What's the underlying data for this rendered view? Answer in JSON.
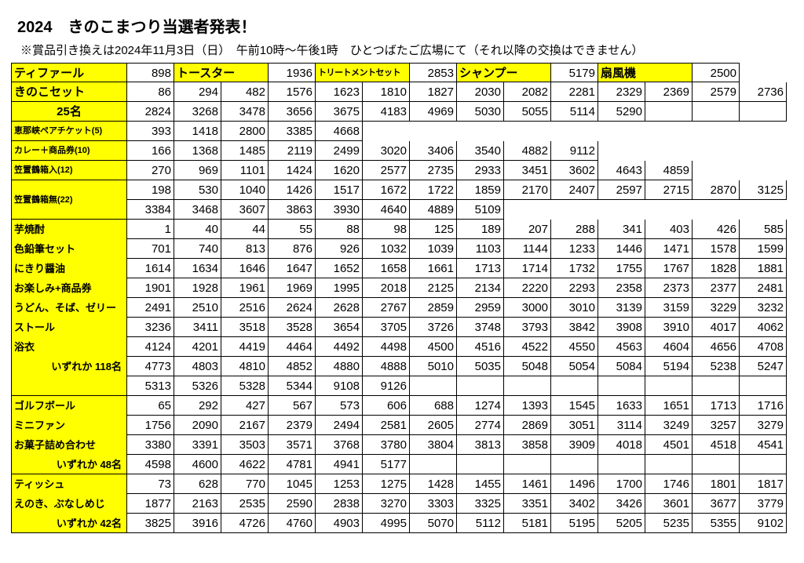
{
  "title": "2024　きのこまつり当選者発表！",
  "subtitle": "※賞品引き換えは2024年11月3日（日）　午前10時～午後1時　ひとつばたご広場にて（それ以降の交換はできません）",
  "row1": {
    "h1": "ティファール",
    "v1": "898",
    "h2": "トースター",
    "v2": "1936",
    "h3": "トリートメントセット",
    "v3": "2853",
    "h4": "シャンプー",
    "v4": "5179",
    "h5": "扇風機",
    "v5": "2500"
  },
  "kinoko": {
    "label": "きのこセット",
    "r1": [
      "86",
      "294",
      "482",
      "1576",
      "1623",
      "1810",
      "1827",
      "2030",
      "2082",
      "2281",
      "2329",
      "2369",
      "2579",
      "2736"
    ],
    "label2": "25名",
    "r2": [
      "2824",
      "3268",
      "3478",
      "3656",
      "3675",
      "4183",
      "4969",
      "5030",
      "5055",
      "5114",
      "5290",
      "",
      "",
      ""
    ]
  },
  "ena": {
    "label": "恵那峡ペアチケット(5)",
    "r": [
      "393",
      "1418",
      "2800",
      "3385",
      "4668"
    ]
  },
  "curry": {
    "label": "カレー＋商品券(10)",
    "r": [
      "166",
      "1368",
      "1485",
      "2119",
      "2499",
      "3020",
      "3406",
      "3540",
      "4882",
      "9112"
    ]
  },
  "kasa1": {
    "label": "笠置鶴箱入(12)",
    "r": [
      "270",
      "969",
      "1101",
      "1424",
      "1620",
      "2577",
      "2735",
      "2933",
      "3451",
      "3602",
      "4643",
      "4859"
    ]
  },
  "kasa2": {
    "label": "笠置鶴箱無(22)",
    "r1": [
      "198",
      "530",
      "1040",
      "1426",
      "1517",
      "1672",
      "1722",
      "1859",
      "2170",
      "2407",
      "2597",
      "2715",
      "2870",
      "3125"
    ],
    "r2": [
      "3384",
      "3468",
      "3607",
      "3863",
      "3930",
      "4640",
      "4889",
      "5109"
    ]
  },
  "block118": {
    "labels": [
      "芋焼酎",
      "色鉛筆セット",
      "にきり醤油",
      "お楽しみ+商品券",
      "うどん、そば、ゼリー",
      "ストール",
      "浴衣",
      "　いずれか  118名",
      ""
    ],
    "rows": [
      [
        "1",
        "40",
        "44",
        "55",
        "88",
        "98",
        "125",
        "189",
        "207",
        "288",
        "341",
        "403",
        "426",
        "585"
      ],
      [
        "701",
        "740",
        "813",
        "876",
        "926",
        "1032",
        "1039",
        "1103",
        "1144",
        "1233",
        "1446",
        "1471",
        "1578",
        "1599"
      ],
      [
        "1614",
        "1634",
        "1646",
        "1647",
        "1652",
        "1658",
        "1661",
        "1713",
        "1714",
        "1732",
        "1755",
        "1767",
        "1828",
        "1881"
      ],
      [
        "1901",
        "1928",
        "1961",
        "1969",
        "1995",
        "2018",
        "2125",
        "2134",
        "2220",
        "2293",
        "2358",
        "2373",
        "2377",
        "2481"
      ],
      [
        "2491",
        "2510",
        "2516",
        "2624",
        "2628",
        "2767",
        "2859",
        "2959",
        "3000",
        "3010",
        "3139",
        "3159",
        "3229",
        "3232"
      ],
      [
        "3236",
        "3411",
        "3518",
        "3528",
        "3654",
        "3705",
        "3726",
        "3748",
        "3793",
        "3842",
        "3908",
        "3910",
        "4017",
        "4062"
      ],
      [
        "4124",
        "4201",
        "4419",
        "4464",
        "4492",
        "4498",
        "4500",
        "4516",
        "4522",
        "4550",
        "4563",
        "4604",
        "4656",
        "4708"
      ],
      [
        "4773",
        "4803",
        "4810",
        "4852",
        "4880",
        "4888",
        "5010",
        "5035",
        "5048",
        "5054",
        "5084",
        "5194",
        "5238",
        "5247"
      ],
      [
        "5313",
        "5326",
        "5328",
        "5344",
        "9108",
        "9126",
        "",
        "",
        "",
        "",
        "",
        "",
        "",
        ""
      ]
    ]
  },
  "block48": {
    "labels": [
      "ゴルフボール",
      "ミニファン",
      "お菓子詰め合わせ",
      "　いずれか  48名"
    ],
    "rows": [
      [
        "65",
        "292",
        "427",
        "567",
        "573",
        "606",
        "688",
        "1274",
        "1393",
        "1545",
        "1633",
        "1651",
        "1713",
        "1716"
      ],
      [
        "1756",
        "2090",
        "2167",
        "2379",
        "2494",
        "2581",
        "2605",
        "2774",
        "2869",
        "3051",
        "3114",
        "3249",
        "3257",
        "3279"
      ],
      [
        "3380",
        "3391",
        "3503",
        "3571",
        "3768",
        "3780",
        "3804",
        "3813",
        "3858",
        "3909",
        "4018",
        "4501",
        "4518",
        "4541"
      ],
      [
        "4598",
        "4600",
        "4622",
        "4781",
        "4941",
        "5177",
        "",
        "",
        "",
        "",
        "",
        "",
        "",
        ""
      ]
    ]
  },
  "block42": {
    "labels": [
      "ティッシュ",
      "えのき、ぶなしめじ",
      "　いずれか  42名"
    ],
    "rows": [
      [
        "73",
        "628",
        "770",
        "1045",
        "1253",
        "1275",
        "1428",
        "1455",
        "1461",
        "1496",
        "1700",
        "1746",
        "1801",
        "1817"
      ],
      [
        "1877",
        "2163",
        "2535",
        "2590",
        "2838",
        "3270",
        "3303",
        "3325",
        "3351",
        "3402",
        "3426",
        "3601",
        "3677",
        "3779"
      ],
      [
        "3825",
        "3916",
        "4726",
        "4760",
        "4903",
        "4995",
        "5070",
        "5112",
        "5181",
        "5195",
        "5205",
        "5235",
        "5355",
        "9102"
      ]
    ]
  }
}
